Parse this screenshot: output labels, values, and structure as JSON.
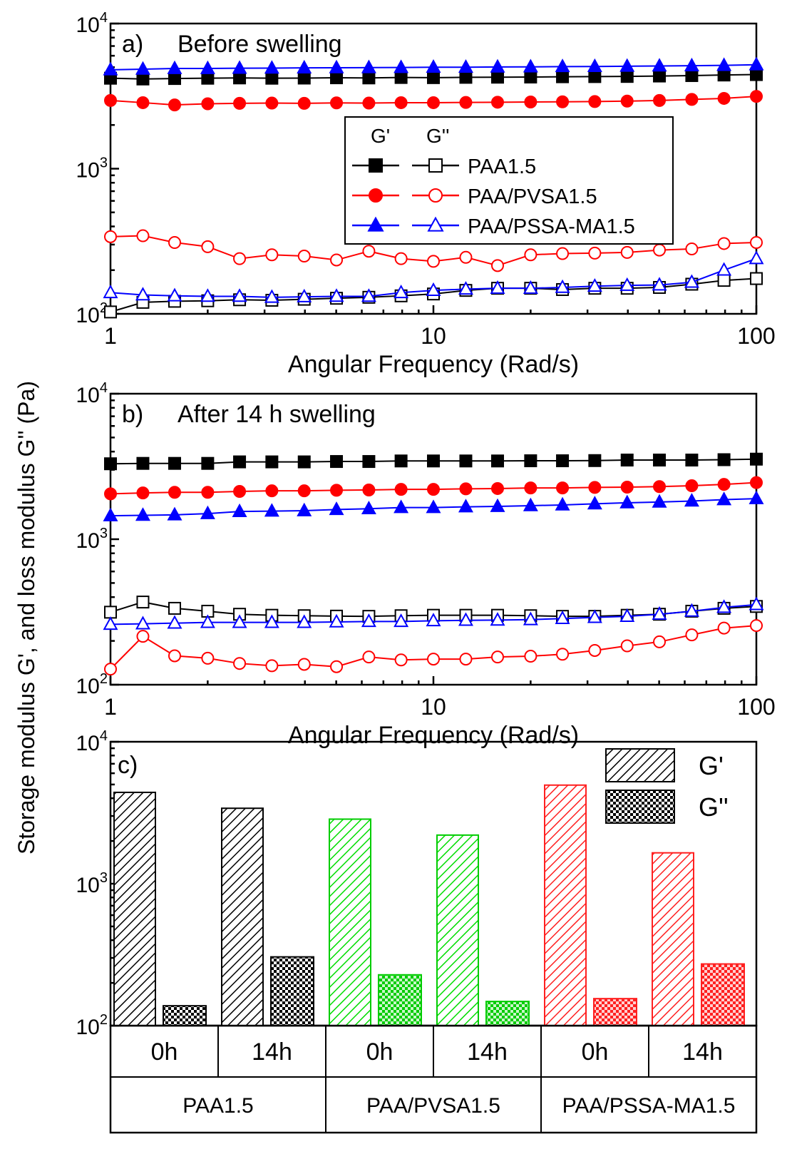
{
  "y_axis_label": "Storage modulus G', and loss modulus G'' (Pa)",
  "chart_data": [
    {
      "type": "line",
      "panel_label": "a)",
      "title": "Before swelling",
      "xlabel": "Angular Frequency (Rad/s)",
      "xscale": "log",
      "yscale": "log",
      "xlim": [
        1,
        100
      ],
      "ylim": [
        100,
        10000
      ],
      "x_ticks": [
        "1",
        "10",
        "100"
      ],
      "y_ticks": [
        {
          "base": "10",
          "exp": "2"
        },
        {
          "base": "10",
          "exp": "3"
        },
        {
          "base": "10",
          "exp": "4"
        }
      ],
      "x": [
        1.0,
        1.26,
        1.58,
        2.0,
        2.51,
        3.16,
        3.98,
        5.01,
        6.31,
        7.94,
        10.0,
        12.6,
        15.8,
        20.0,
        25.1,
        31.6,
        39.8,
        50.1,
        63.1,
        79.4,
        100.0
      ],
      "legend": {
        "col_headers": [
          "G'",
          "G''"
        ],
        "position": "upper-right",
        "entries": [
          "PAA1.5",
          "PAA/PVSA1.5",
          "PAA/PSSA-MA1.5"
        ]
      },
      "series": [
        {
          "name": "PAA1.5",
          "modulus": "G'",
          "color": "#000000",
          "marker": "square",
          "filled": true,
          "values": [
            4200,
            4150,
            4180,
            4200,
            4220,
            4200,
            4210,
            4230,
            4220,
            4250,
            4240,
            4260,
            4270,
            4280,
            4300,
            4310,
            4320,
            4350,
            4380,
            4420,
            4450
          ]
        },
        {
          "name": "PAA/PVSA1.5",
          "modulus": "G'",
          "color": "#ff0000",
          "marker": "circle",
          "filled": true,
          "values": [
            2950,
            2850,
            2750,
            2800,
            2820,
            2830,
            2820,
            2840,
            2830,
            2850,
            2850,
            2860,
            2870,
            2880,
            2890,
            2900,
            2920,
            2950,
            3000,
            3050,
            3150
          ]
        },
        {
          "name": "PAA/PSSA-MA1.5",
          "modulus": "G'",
          "color": "#0000ff",
          "marker": "triangle",
          "filled": true,
          "values": [
            4800,
            4850,
            4900,
            4900,
            4920,
            4930,
            4950,
            4960,
            4970,
            4980,
            5000,
            5000,
            5020,
            5030,
            5050,
            5060,
            5080,
            5100,
            5120,
            5150,
            5200
          ]
        },
        {
          "name": "PAA1.5",
          "modulus": "G''",
          "color": "#000000",
          "marker": "square",
          "filled": false,
          "values": [
            103,
            120,
            122,
            123,
            125,
            124,
            126,
            128,
            130,
            133,
            137,
            145,
            150,
            150,
            147,
            150,
            150,
            152,
            160,
            170,
            175
          ]
        },
        {
          "name": "PAA/PVSA1.5",
          "modulus": "G''",
          "color": "#ff0000",
          "marker": "circle",
          "filled": false,
          "values": [
            340,
            345,
            310,
            290,
            240,
            255,
            250,
            235,
            270,
            240,
            230,
            245,
            215,
            255,
            260,
            262,
            265,
            275,
            280,
            305,
            310
          ]
        },
        {
          "name": "PAA/PSSA-MA1.5",
          "modulus": "G''",
          "color": "#0000ff",
          "marker": "triangle",
          "filled": false,
          "values": [
            140,
            135,
            133,
            132,
            132,
            130,
            131,
            132,
            132,
            140,
            145,
            148,
            150,
            150,
            152,
            155,
            157,
            158,
            165,
            200,
            240
          ]
        }
      ]
    },
    {
      "type": "line",
      "panel_label": "b)",
      "title": "After 14 h swelling",
      "xlabel": "Angular Frequency (Rad/s)",
      "xscale": "log",
      "yscale": "log",
      "xlim": [
        1,
        100
      ],
      "ylim": [
        100,
        10000
      ],
      "x_ticks": [
        "1",
        "10",
        "100"
      ],
      "y_ticks": [
        {
          "base": "10",
          "exp": "2"
        },
        {
          "base": "10",
          "exp": "3"
        },
        {
          "base": "10",
          "exp": "4"
        }
      ],
      "x": [
        1.0,
        1.26,
        1.58,
        2.0,
        2.51,
        3.16,
        3.98,
        5.01,
        6.31,
        7.94,
        10.0,
        12.6,
        15.8,
        20.0,
        25.1,
        31.6,
        39.8,
        50.1,
        63.1,
        79.4,
        100.0
      ],
      "series": [
        {
          "name": "PAA1.5",
          "modulus": "G'",
          "color": "#000000",
          "marker": "square",
          "filled": true,
          "values": [
            3300,
            3320,
            3320,
            3320,
            3400,
            3400,
            3400,
            3420,
            3420,
            3450,
            3450,
            3450,
            3450,
            3460,
            3460,
            3470,
            3500,
            3500,
            3500,
            3520,
            3550
          ]
        },
        {
          "name": "PAA/PVSA1.5",
          "modulus": "G'",
          "color": "#ff0000",
          "marker": "circle",
          "filled": true,
          "values": [
            2050,
            2080,
            2100,
            2100,
            2130,
            2150,
            2150,
            2170,
            2180,
            2200,
            2200,
            2220,
            2230,
            2250,
            2250,
            2270,
            2280,
            2300,
            2330,
            2380,
            2450
          ]
        },
        {
          "name": "PAA/PSSA-MA1.5",
          "modulus": "G'",
          "color": "#0000ff",
          "marker": "triangle",
          "filled": true,
          "values": [
            1450,
            1460,
            1470,
            1500,
            1550,
            1560,
            1570,
            1600,
            1620,
            1650,
            1650,
            1670,
            1680,
            1700,
            1720,
            1750,
            1780,
            1800,
            1830,
            1870,
            1900
          ]
        },
        {
          "name": "PAA1.5",
          "modulus": "G''",
          "color": "#000000",
          "marker": "square",
          "filled": false,
          "values": [
            315,
            370,
            335,
            320,
            305,
            300,
            298,
            296,
            295,
            298,
            300,
            300,
            300,
            298,
            295,
            295,
            300,
            305,
            320,
            335,
            345
          ]
        },
        {
          "name": "PAA/PVSA1.5",
          "modulus": "G''",
          "color": "#ff0000",
          "marker": "circle",
          "filled": false,
          "values": [
            128,
            215,
            158,
            152,
            140,
            135,
            138,
            133,
            155,
            148,
            150,
            150,
            155,
            157,
            162,
            172,
            185,
            197,
            220,
            245,
            255
          ]
        },
        {
          "name": "PAA/PSSA-MA1.5",
          "modulus": "G''",
          "color": "#0000ff",
          "marker": "triangle",
          "filled": false,
          "values": [
            260,
            262,
            265,
            268,
            268,
            268,
            268,
            270,
            272,
            272,
            275,
            277,
            278,
            280,
            285,
            290,
            295,
            305,
            320,
            340,
            355
          ]
        }
      ]
    },
    {
      "type": "bar",
      "panel_label": "c)",
      "yscale": "log",
      "ylim": [
        100,
        10000
      ],
      "y_ticks": [
        {
          "base": "10",
          "exp": "2"
        },
        {
          "base": "10",
          "exp": "3"
        },
        {
          "base": "10",
          "exp": "4"
        }
      ],
      "groups": [
        {
          "name": "PAA1.5",
          "color": "#000000",
          "fill": "#ffffff",
          "times": [
            {
              "label": "0h",
              "G'": 4400,
              "G''": 138
            },
            {
              "label": "14h",
              "G'": 3400,
              "G''": 305
            }
          ]
        },
        {
          "name": "PAA/PVSA1.5",
          "color": "#00cc00",
          "fill": "#c8f5c8",
          "times": [
            {
              "label": "0h",
              "G'": 2850,
              "G''": 228
            },
            {
              "label": "14h",
              "G'": 2200,
              "G''": 148
            }
          ]
        },
        {
          "name": "PAA/PSSA-MA1.5",
          "color": "#ff2020",
          "fill": "#ffd0d0",
          "times": [
            {
              "label": "0h",
              "G'": 4950,
              "G''": 155
            },
            {
              "label": "14h",
              "G'": 1650,
              "G''": 272
            }
          ]
        }
      ],
      "legend": {
        "entries": [
          "G'",
          "G''"
        ],
        "position": "top-right"
      }
    }
  ]
}
